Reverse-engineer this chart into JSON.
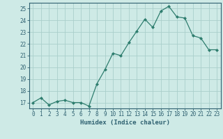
{
  "x": [
    0,
    1,
    2,
    3,
    4,
    5,
    6,
    7,
    8,
    9,
    10,
    11,
    12,
    13,
    14,
    15,
    16,
    17,
    18,
    19,
    20,
    21,
    22,
    23
  ],
  "y": [
    17.0,
    17.4,
    16.8,
    17.1,
    17.2,
    17.0,
    17.0,
    16.7,
    18.6,
    19.8,
    21.2,
    21.0,
    22.1,
    23.1,
    24.1,
    23.4,
    24.8,
    25.2,
    24.3,
    24.2,
    22.7,
    22.5,
    21.5,
    21.5
  ],
  "line_color": "#2e7d6e",
  "marker": "D",
  "marker_size": 2.0,
  "bg_color": "#ceeae6",
  "grid_color": "#aacfcb",
  "xlabel": "Humidex (Indice chaleur)",
  "tick_color": "#2e6070",
  "label_color": "#2e6070",
  "ylim": [
    16.5,
    25.5
  ],
  "yticks": [
    17,
    18,
    19,
    20,
    21,
    22,
    23,
    24,
    25
  ],
  "xlim": [
    -0.5,
    23.5
  ],
  "xticks": [
    0,
    1,
    2,
    3,
    4,
    5,
    6,
    7,
    8,
    9,
    10,
    11,
    12,
    13,
    14,
    15,
    16,
    17,
    18,
    19,
    20,
    21,
    22,
    23
  ],
  "spine_color": "#2e6070",
  "tick_fontsize": 5.5,
  "xlabel_fontsize": 6.5
}
